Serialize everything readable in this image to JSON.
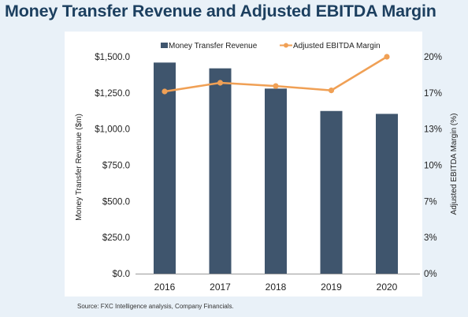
{
  "chart_data": {
    "type": "bar",
    "title": "Money Transfer Revenue and Adjusted EBITDA Margin",
    "categories": [
      "2016",
      "2017",
      "2018",
      "2019",
      "2020"
    ],
    "series": [
      {
        "name": "Money Transfer Revenue",
        "type": "bar",
        "axis": "left",
        "color": "#3f556d",
        "values": [
          1460,
          1420,
          1280,
          1125,
          1105
        ]
      },
      {
        "name": "Adjusted EBITDA Margin",
        "type": "line",
        "axis": "right",
        "color": "#f0a055",
        "values": [
          16.8,
          17.6,
          17.3,
          16.9,
          20.0
        ]
      }
    ],
    "ylabel": "Money Transfer Revenue ($m)",
    "y2label": "Adjusted EBITDA Margin (%)",
    "ylim": [
      0,
      1500
    ],
    "y2lim": [
      0,
      20
    ],
    "yticks": [
      "$0.0",
      "$250.0",
      "$500.0",
      "$750.0",
      "$1,000.0",
      "$1,250.0",
      "$1,500.0"
    ],
    "y2ticks": [
      "0%",
      "3%",
      "7%",
      "10%",
      "13%",
      "17%",
      "20%"
    ],
    "legend_position": "top",
    "grid": false
  },
  "source": "Source: FXC Intelligence analysis, Company Financials."
}
